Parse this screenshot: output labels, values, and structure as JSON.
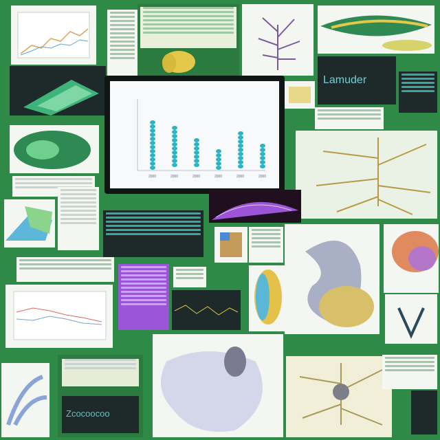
{
  "main_screen": {
    "title": "",
    "tick_labels": [
      "2000",
      "2000",
      "2000",
      "2000",
      "2000",
      "2000"
    ]
  },
  "teal_panel": {
    "caption": "Lamuder"
  },
  "bottom_panel": {
    "caption": "Zcocoocoo"
  },
  "colors": {
    "frame_green": "#2f8a48",
    "bar_teal": "#2bb3c6",
    "accent_purple": "#9b55d6"
  },
  "icons": [
    "fern-diagram-icon",
    "leaf-icon",
    "organ-model-icon",
    "fruit-icon",
    "tissue-icon"
  ]
}
